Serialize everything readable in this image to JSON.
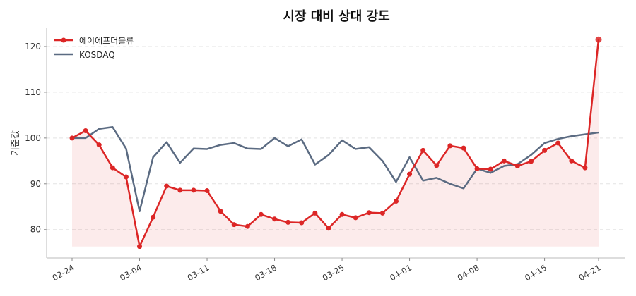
{
  "chart_data": {
    "type": "line",
    "title": "시장 대비 상대 강도",
    "xlabel": "",
    "ylabel": "기준값",
    "ylim": [
      73.8,
      124
    ],
    "yticks": [
      80,
      90,
      100,
      110,
      120
    ],
    "grid": "horizontal-dashed",
    "legend_position": "top-left",
    "x": [
      "02-24",
      "02-25",
      "02-26",
      "02-27",
      "02-28",
      "03-04",
      "03-05",
      "03-06",
      "03-07",
      "03-10",
      "03-11",
      "03-12",
      "03-13",
      "03-14",
      "03-17",
      "03-18",
      "03-19",
      "03-20",
      "03-21",
      "03-24",
      "03-25",
      "03-26",
      "03-27",
      "03-28",
      "03-31",
      "04-01",
      "04-02",
      "04-03",
      "04-04",
      "04-07",
      "04-08",
      "04-09",
      "04-10",
      "04-11",
      "04-14",
      "04-15",
      "04-16",
      "04-17",
      "04-18",
      "04-21"
    ],
    "xtick_labels": [
      "02-24",
      "03-04",
      "03-11",
      "03-18",
      "03-25",
      "04-01",
      "04-08",
      "04-15",
      "04-21"
    ],
    "series": [
      {
        "name": "에이에프더블류",
        "color": "#dc2626",
        "markers": true,
        "fill": true,
        "values": [
          100,
          101.6,
          98.5,
          93.5,
          91.5,
          76.3,
          82.7,
          89.5,
          88.6,
          88.6,
          88.5,
          84.0,
          81.1,
          80.7,
          83.3,
          82.3,
          81.6,
          81.5,
          83.6,
          80.3,
          83.3,
          82.6,
          83.7,
          83.6,
          86.2,
          92.1,
          97.3,
          94.0,
          98.3,
          97.8,
          93.3,
          93.2,
          95.0,
          93.9,
          94.9,
          97.3,
          98.9,
          95.0,
          93.5,
          121.5
        ]
      },
      {
        "name": "KOSDAQ",
        "color": "#5b6b82",
        "markers": false,
        "fill": false,
        "values": [
          100,
          100,
          102,
          102.4,
          97.7,
          84,
          95.8,
          99.1,
          94.6,
          97.7,
          97.6,
          98.5,
          98.9,
          97.7,
          97.6,
          100,
          98.2,
          99.7,
          94.2,
          96.3,
          99.5,
          97.6,
          98,
          95,
          90.4,
          95.8,
          90.7,
          91.3,
          90,
          89,
          93.3,
          92.4,
          93.9,
          94.3,
          96.3,
          98.9,
          99.8,
          100.4,
          100.8,
          101.2
        ]
      }
    ]
  }
}
